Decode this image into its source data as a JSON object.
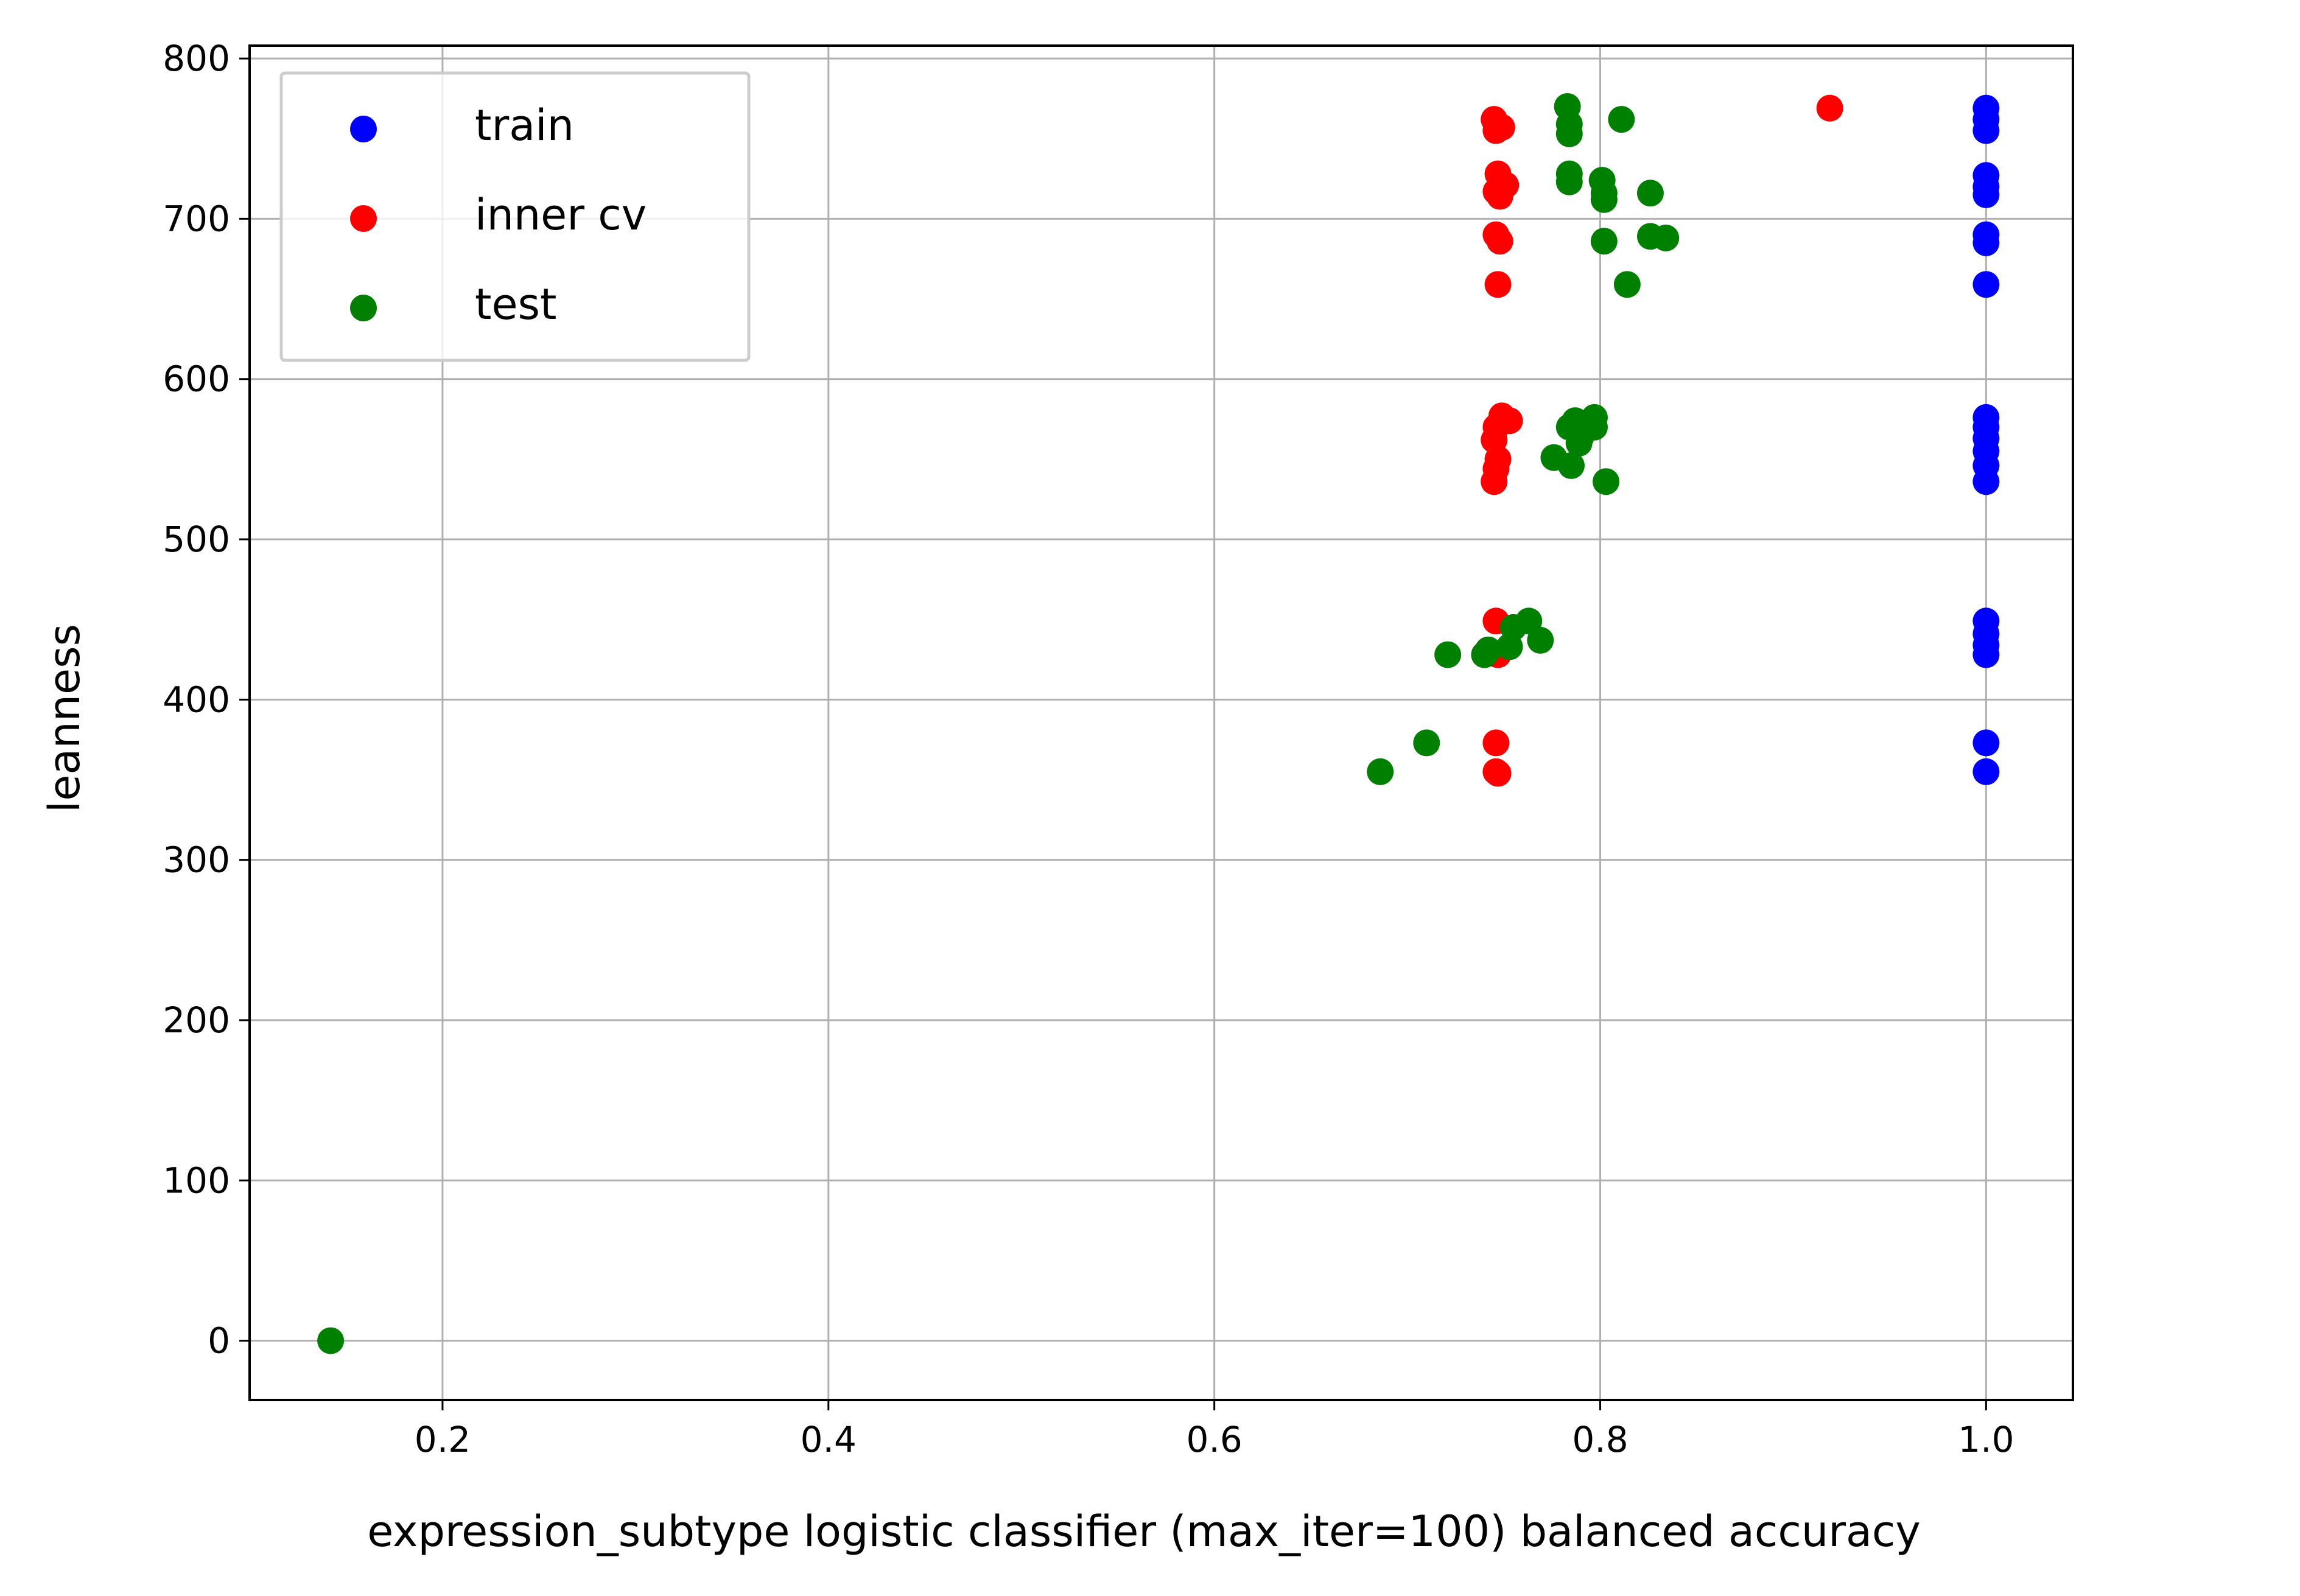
{
  "chart_data": {
    "type": "scatter",
    "xlabel": "expression_subtype logistic classifier (max_iter=100) balanced accuracy",
    "ylabel": "leanness",
    "xlim": [
      0.1,
      1.045
    ],
    "ylim": [
      -37,
      808
    ],
    "xticks": [
      0.2,
      0.4,
      0.6,
      0.8,
      1.0
    ],
    "xtick_labels": [
      "0.2",
      "0.4",
      "0.6",
      "0.8",
      "1.0"
    ],
    "yticks": [
      0,
      100,
      200,
      300,
      400,
      500,
      600,
      700,
      800
    ],
    "ytick_labels": [
      "0",
      "100",
      "200",
      "300",
      "400",
      "500",
      "600",
      "700",
      "800"
    ],
    "grid": true,
    "legend_position": "upper-left",
    "series": [
      {
        "name": "train",
        "color": "#0000ff",
        "points": [
          [
            1.0,
            769
          ],
          [
            1.0,
            762
          ],
          [
            1.0,
            755
          ],
          [
            1.0,
            727
          ],
          [
            1.0,
            720
          ],
          [
            1.0,
            715
          ],
          [
            1.0,
            690
          ],
          [
            1.0,
            685
          ],
          [
            1.0,
            659
          ],
          [
            1.0,
            576
          ],
          [
            1.0,
            570
          ],
          [
            1.0,
            563
          ],
          [
            1.0,
            555
          ],
          [
            1.0,
            546
          ],
          [
            1.0,
            536
          ],
          [
            1.0,
            449
          ],
          [
            1.0,
            441
          ],
          [
            1.0,
            434
          ],
          [
            1.0,
            428
          ],
          [
            1.0,
            373
          ],
          [
            1.0,
            355
          ]
        ]
      },
      {
        "name": "inner cv",
        "color": "#ff0000",
        "points": [
          [
            0.919,
            769
          ],
          [
            0.745,
            762
          ],
          [
            0.749,
            757
          ],
          [
            0.746,
            755
          ],
          [
            0.747,
            728
          ],
          [
            0.751,
            721
          ],
          [
            0.746,
            717
          ],
          [
            0.748,
            714
          ],
          [
            0.746,
            690
          ],
          [
            0.748,
            686
          ],
          [
            0.747,
            659
          ],
          [
            0.749,
            577
          ],
          [
            0.753,
            574
          ],
          [
            0.746,
            570
          ],
          [
            0.745,
            562
          ],
          [
            0.747,
            550
          ],
          [
            0.746,
            544
          ],
          [
            0.745,
            536
          ],
          [
            0.746,
            449
          ],
          [
            0.747,
            428
          ],
          [
            0.746,
            373
          ],
          [
            0.746,
            355
          ],
          [
            0.747,
            354
          ]
        ]
      },
      {
        "name": "test",
        "color": "#008000",
        "points": [
          [
            0.783,
            770
          ],
          [
            0.811,
            762
          ],
          [
            0.784,
            759
          ],
          [
            0.784,
            753
          ],
          [
            0.784,
            728
          ],
          [
            0.784,
            723
          ],
          [
            0.801,
            724
          ],
          [
            0.802,
            716
          ],
          [
            0.826,
            716
          ],
          [
            0.802,
            712
          ],
          [
            0.802,
            686
          ],
          [
            0.826,
            689
          ],
          [
            0.834,
            688
          ],
          [
            0.814,
            659
          ],
          [
            0.797,
            576
          ],
          [
            0.787,
            574
          ],
          [
            0.784,
            570
          ],
          [
            0.797,
            570
          ],
          [
            0.79,
            564
          ],
          [
            0.789,
            560
          ],
          [
            0.776,
            551
          ],
          [
            0.785,
            546
          ],
          [
            0.803,
            536
          ],
          [
            0.763,
            449
          ],
          [
            0.755,
            445
          ],
          [
            0.769,
            437
          ],
          [
            0.753,
            433
          ],
          [
            0.742,
            431
          ],
          [
            0.74,
            428
          ],
          [
            0.721,
            428
          ],
          [
            0.71,
            373
          ],
          [
            0.686,
            355
          ],
          [
            0.142,
            0
          ]
        ]
      }
    ]
  }
}
